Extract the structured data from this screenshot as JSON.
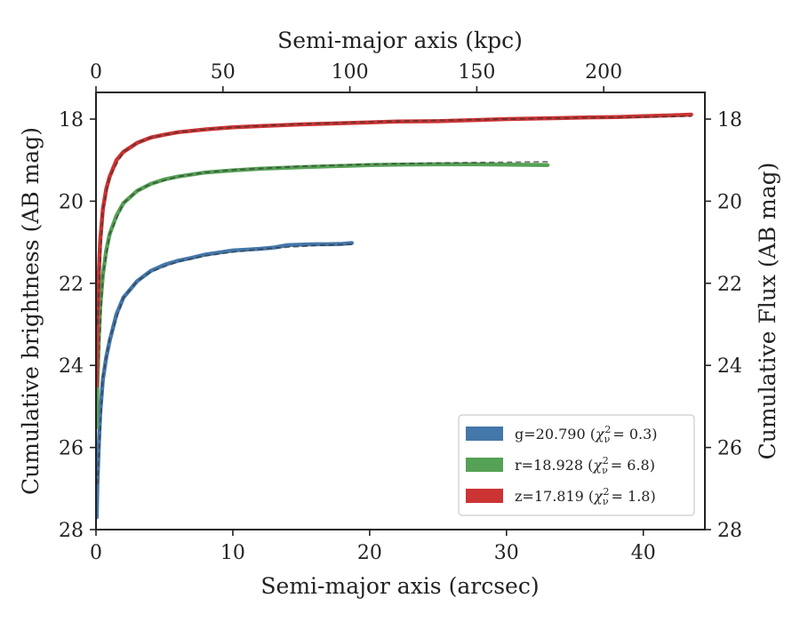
{
  "chart_data": {
    "type": "line",
    "xlabel_bottom": "Semi-major axis (arcsec)",
    "xlabel_top": "Semi-major axis (kpc)",
    "ylabel_left": "Cumulative brightness (AB mag)",
    "ylabel_right": "Cumulative Flux (AB mag)",
    "xlim": [
      0,
      44.5
    ],
    "ylim": [
      28,
      17.35
    ],
    "y_inverted": true,
    "x_ticks": [
      0,
      10,
      20,
      30,
      40
    ],
    "y_ticks": [
      18,
      20,
      22,
      24,
      26,
      28
    ],
    "top_axis": {
      "kpc_per_arcsec": 5.39,
      "ticks": [
        0,
        50,
        100,
        150,
        200
      ]
    },
    "legend_position": "lower-right",
    "series": [
      {
        "name": "g=20.790",
        "chi_label": "χ",
        "chi_sub": "ν",
        "chi_sup": "2",
        "chi_value": "= 0.3)",
        "color": "#4477aa",
        "model_color": "#333333",
        "x": [
          0.05,
          0.1,
          0.2,
          0.3,
          0.5,
          0.75,
          1,
          1.5,
          2,
          3,
          4,
          5,
          6,
          7,
          8,
          9,
          10,
          11,
          12,
          13,
          14,
          15,
          16,
          17,
          18,
          18.7
        ],
        "y": [
          27.7,
          26.9,
          26.0,
          25.2,
          24.35,
          23.8,
          23.4,
          22.75,
          22.35,
          21.95,
          21.7,
          21.55,
          21.45,
          21.38,
          21.3,
          21.25,
          21.2,
          21.18,
          21.16,
          21.13,
          21.07,
          21.06,
          21.05,
          21.05,
          21.04,
          21.02
        ],
        "model_x": [
          0.1,
          0.5,
          1,
          2,
          3,
          4,
          6,
          8,
          10,
          12,
          14,
          16,
          18.7
        ],
        "model_y": [
          26.9,
          24.3,
          23.35,
          22.35,
          21.95,
          21.72,
          21.47,
          21.33,
          21.24,
          21.17,
          21.12,
          21.08,
          21.05
        ]
      },
      {
        "name": "r=18.928",
        "chi_label": "χ",
        "chi_sub": "ν",
        "chi_sup": "2",
        "chi_value": "= 6.8)",
        "color": "#55a155",
        "model_color": "#333333",
        "x": [
          0.05,
          0.1,
          0.2,
          0.3,
          0.5,
          0.75,
          1,
          1.5,
          2,
          3,
          4,
          5,
          6,
          8,
          10,
          12,
          15,
          18,
          20,
          22,
          25,
          28,
          30,
          33
        ],
        "y": [
          25.5,
          24.5,
          23.4,
          22.6,
          21.8,
          21.2,
          20.8,
          20.35,
          20.05,
          19.75,
          19.58,
          19.47,
          19.4,
          19.3,
          19.25,
          19.21,
          19.17,
          19.14,
          19.12,
          19.11,
          19.1,
          19.1,
          19.11,
          19.12
        ],
        "model_x": [
          0.1,
          0.5,
          1,
          2,
          3,
          4,
          6,
          8,
          10,
          15,
          20,
          25,
          30,
          33
        ],
        "model_y": [
          24.5,
          21.8,
          20.8,
          20.05,
          19.75,
          19.58,
          19.4,
          19.3,
          19.24,
          19.15,
          19.1,
          19.07,
          19.05,
          19.04
        ]
      },
      {
        "name": "z=17.819",
        "chi_label": "χ",
        "chi_sub": "ν",
        "chi_sup": "2",
        "chi_value": "= 1.8)",
        "color": "#cc3333",
        "model_color": "#333333",
        "x": [
          0.05,
          0.1,
          0.2,
          0.3,
          0.5,
          0.75,
          1,
          1.5,
          2,
          3,
          4,
          5,
          6,
          8,
          10,
          12,
          15,
          18,
          20,
          22,
          25,
          28,
          30,
          33,
          36,
          38,
          40,
          42,
          43.5
        ],
        "y": [
          24.5,
          23.0,
          21.8,
          21.0,
          20.2,
          19.7,
          19.4,
          19.0,
          18.8,
          18.58,
          18.45,
          18.38,
          18.32,
          18.25,
          18.2,
          18.17,
          18.13,
          18.1,
          18.08,
          18.06,
          18.05,
          18.02,
          18.0,
          17.98,
          17.96,
          17.95,
          17.93,
          17.91,
          17.89
        ],
        "model_x": [
          0.1,
          0.5,
          1,
          2,
          3,
          4,
          6,
          8,
          10,
          15,
          20,
          25,
          30,
          35,
          40,
          43.5
        ],
        "model_y": [
          23.0,
          20.2,
          19.4,
          18.8,
          18.58,
          18.45,
          18.32,
          18.25,
          18.2,
          18.12,
          18.07,
          18.03,
          18.0,
          17.97,
          17.95,
          17.93
        ]
      }
    ]
  }
}
